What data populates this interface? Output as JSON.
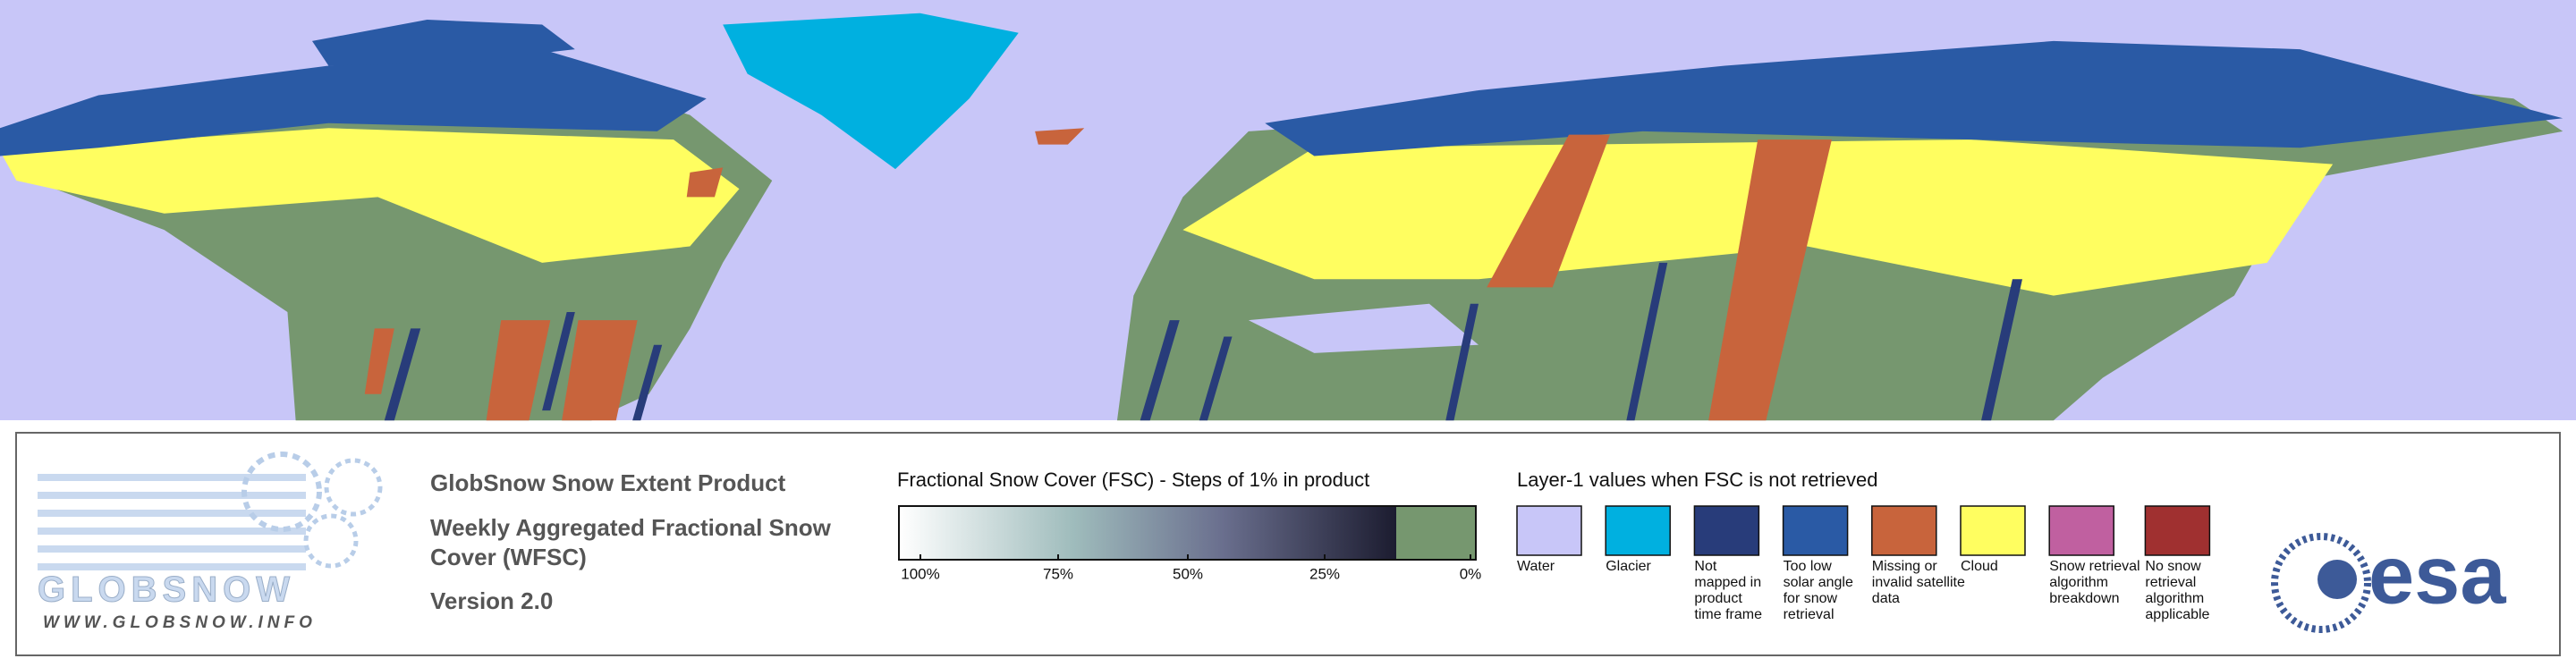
{
  "product": {
    "title": "GlobSnow Snow Extent Product",
    "subtitle_lines": [
      "Weekly Aggregated Fractional Snow",
      "Cover (WFSC)"
    ],
    "version": "Version 2.0"
  },
  "logo": {
    "name": "GLOBSNOW",
    "url": "WWW.GLOBSNOW.INFO"
  },
  "fsc_legend": {
    "title": "Fractional Snow Cover (FSC) - Steps of 1% in product",
    "tick_labels": [
      "100%",
      "75%",
      "50%",
      "25%",
      "0%"
    ]
  },
  "layer1_legend": {
    "title": "Layer-1 values when FSC is not retrieved",
    "items": [
      {
        "label_lines": [
          "Water"
        ],
        "color": "#c8c6f8"
      },
      {
        "label_lines": [
          "Glacier"
        ],
        "color": "#00b0e0"
      },
      {
        "label_lines": [
          "Not",
          "mapped in",
          "product",
          "time frame"
        ],
        "color": "#283c7a"
      },
      {
        "label_lines": [
          "Too low",
          "solar angle",
          "for snow",
          "retrieval"
        ],
        "color": "#2a5aa5"
      },
      {
        "label_lines": [
          "Missing or",
          "invalid satellite",
          "data"
        ],
        "color": "#c8643c"
      },
      {
        "label_lines": [
          "Cloud"
        ],
        "color": "#fffe60"
      },
      {
        "label_lines": [
          "Snow retrieval",
          "algorithm",
          "breakdown"
        ],
        "color": "#c060a0"
      },
      {
        "label_lines": [
          "No snow",
          "retrieval",
          "algorithm",
          "applicable"
        ],
        "color": "#a03030"
      }
    ]
  },
  "agency_logo": "esa"
}
